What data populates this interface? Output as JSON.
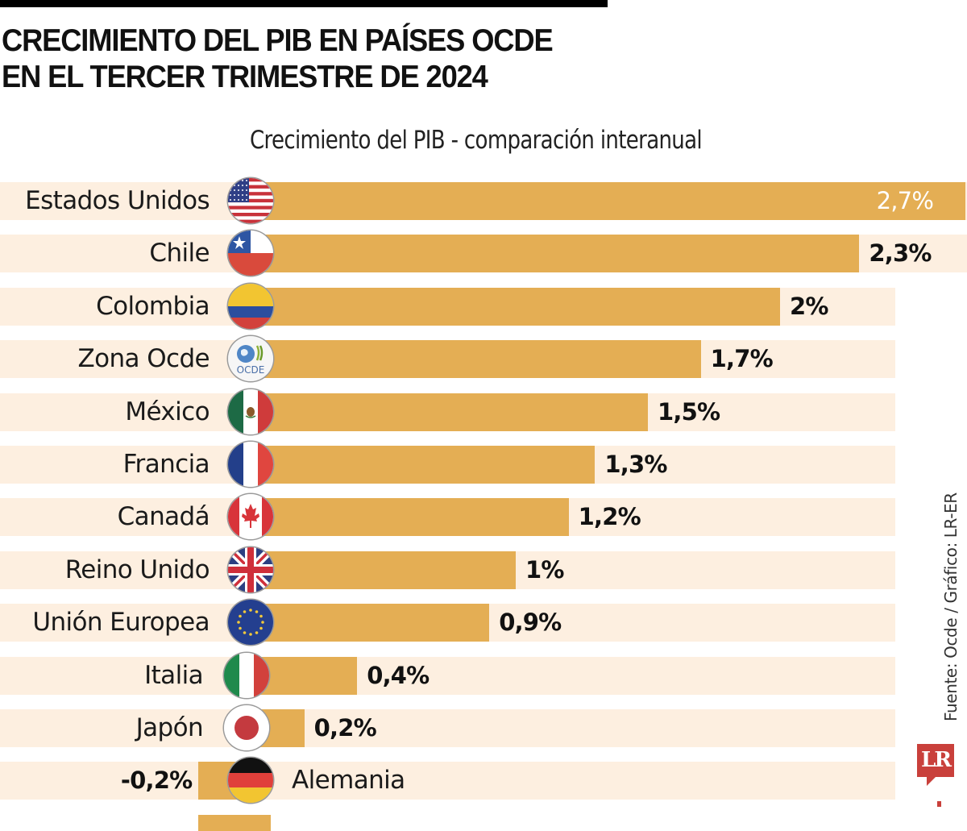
{
  "header": {
    "title_lines": [
      "CRECIMIENTO DEL PIB EN PAÍSES OCDE",
      "EN EL TERCER TRIMESTRE DE 2024"
    ],
    "subtitle": "Crecimiento del PIB - comparación interanual"
  },
  "footer": {
    "source": "Fuente: Ocde / Gráfico: LR-ER",
    "logo_text": "LR"
  },
  "colors": {
    "bar": "#e4ae54",
    "band": "#fdefe0",
    "logo": "#c9403b",
    "title": "#111111"
  },
  "chart_data": {
    "type": "bar",
    "orientation": "horizontal",
    "title": "CRECIMIENTO DEL PIB EN PAÍSES OCDE EN EL TERCER TRIMESTRE DE 2024",
    "subtitle": "Crecimiento del PIB - comparación interanual",
    "xlabel": "",
    "ylabel": "",
    "unit": "%",
    "xlim": [
      -0.2,
      2.7
    ],
    "grid": false,
    "legend": "none",
    "categories": [
      "Estados Unidos",
      "Chile",
      "Colombia",
      "Zona Ocde",
      "México",
      "Francia",
      "Canadá",
      "Reino Unido",
      "Unión Europea",
      "Italia",
      "Japón",
      "Alemania"
    ],
    "values": [
      2.7,
      2.3,
      2.0,
      1.7,
      1.5,
      1.3,
      1.2,
      1.0,
      0.9,
      0.4,
      0.2,
      -0.2
    ],
    "value_labels": [
      "2,7%",
      "2,3%",
      "2%",
      "1,7%",
      "1,5%",
      "1,3%",
      "1,2%",
      "1%",
      "0,9%",
      "0,4%",
      "0,2%",
      "-0,2%"
    ],
    "icons": [
      "us-flag",
      "chile-flag",
      "colombia-flag",
      "ocde-logo",
      "mexico-flag",
      "france-flag",
      "canada-flag",
      "uk-flag",
      "eu-flag",
      "italy-flag",
      "japan-flag",
      "germany-flag"
    ]
  }
}
